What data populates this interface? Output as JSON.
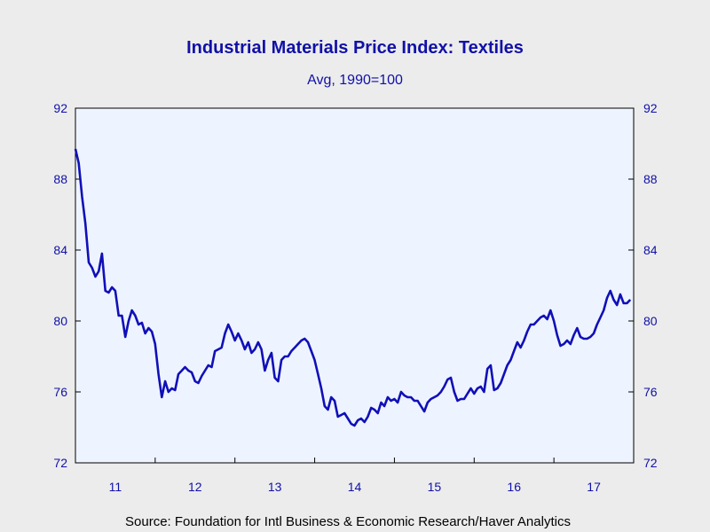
{
  "chart_data": {
    "type": "line",
    "title": "Industrial Materials Price Index: Textiles",
    "subtitle": "Avg, 1990=100",
    "source": "Source:  Foundation for Intl Business & Economic Research/Haver Analytics",
    "ylim": [
      72,
      92
    ],
    "yticks": [
      "72",
      "76",
      "80",
      "84",
      "88",
      "92"
    ],
    "xlabels": [
      "11",
      "12",
      "13",
      "14",
      "15",
      "16",
      "17"
    ],
    "grid": false,
    "colors": {
      "line": "#1010b8",
      "plot_bg": "#eef4ff",
      "text": "#1010a8"
    },
    "series": [
      {
        "x_start": 2011.0,
        "step": 0.04166,
        "values": [
          89.7,
          88.9,
          87.0,
          85.5,
          83.3,
          83.0,
          82.5,
          82.8,
          83.8,
          81.7,
          81.6,
          81.9,
          81.7,
          80.3,
          80.3,
          79.1,
          80.0,
          80.6,
          80.3,
          79.8,
          79.9,
          79.3,
          79.6,
          79.4,
          78.7,
          77.0,
          75.7,
          76.6,
          76.0,
          76.2,
          76.1,
          77.0,
          77.2,
          77.4,
          77.2,
          77.1,
          76.6,
          76.5,
          76.9,
          77.2,
          77.5,
          77.4,
          78.3,
          78.4,
          78.5,
          79.3,
          79.8,
          79.4,
          78.9,
          79.3,
          78.9,
          78.4,
          78.8,
          78.2,
          78.4,
          78.8,
          78.4,
          77.2,
          77.8,
          78.2,
          76.8,
          76.6,
          77.8,
          78.0,
          78.0,
          78.3,
          78.5,
          78.7,
          78.9,
          79.0,
          78.8,
          78.3,
          77.8,
          77.0,
          76.2,
          75.2,
          75.0,
          75.7,
          75.5,
          74.6,
          74.7,
          74.8,
          74.5,
          74.2,
          74.1,
          74.4,
          74.5,
          74.3,
          74.6,
          75.1,
          75.0,
          74.8,
          75.4,
          75.2,
          75.7,
          75.5,
          75.6,
          75.4,
          76.0,
          75.8,
          75.7,
          75.7,
          75.5,
          75.5,
          75.2,
          74.9,
          75.4,
          75.6,
          75.7,
          75.8,
          76.0,
          76.3,
          76.7,
          76.8,
          76.0,
          75.5,
          75.6,
          75.6,
          75.9,
          76.2,
          75.9,
          76.2,
          76.3,
          76.0,
          77.3,
          77.5,
          76.1,
          76.2,
          76.5,
          77.0,
          77.5,
          77.8,
          78.3,
          78.8,
          78.5,
          78.9,
          79.4,
          79.8,
          79.8,
          80.0,
          80.2,
          80.3,
          80.1,
          80.6,
          80.0,
          79.2,
          78.6,
          78.7,
          78.9,
          78.7,
          79.2,
          79.6,
          79.1,
          79.0,
          79.0,
          79.1,
          79.3,
          79.8,
          80.2,
          80.6,
          81.3,
          81.7,
          81.2,
          80.9,
          81.5,
          81.0,
          81.0,
          81.2
        ]
      }
    ]
  }
}
